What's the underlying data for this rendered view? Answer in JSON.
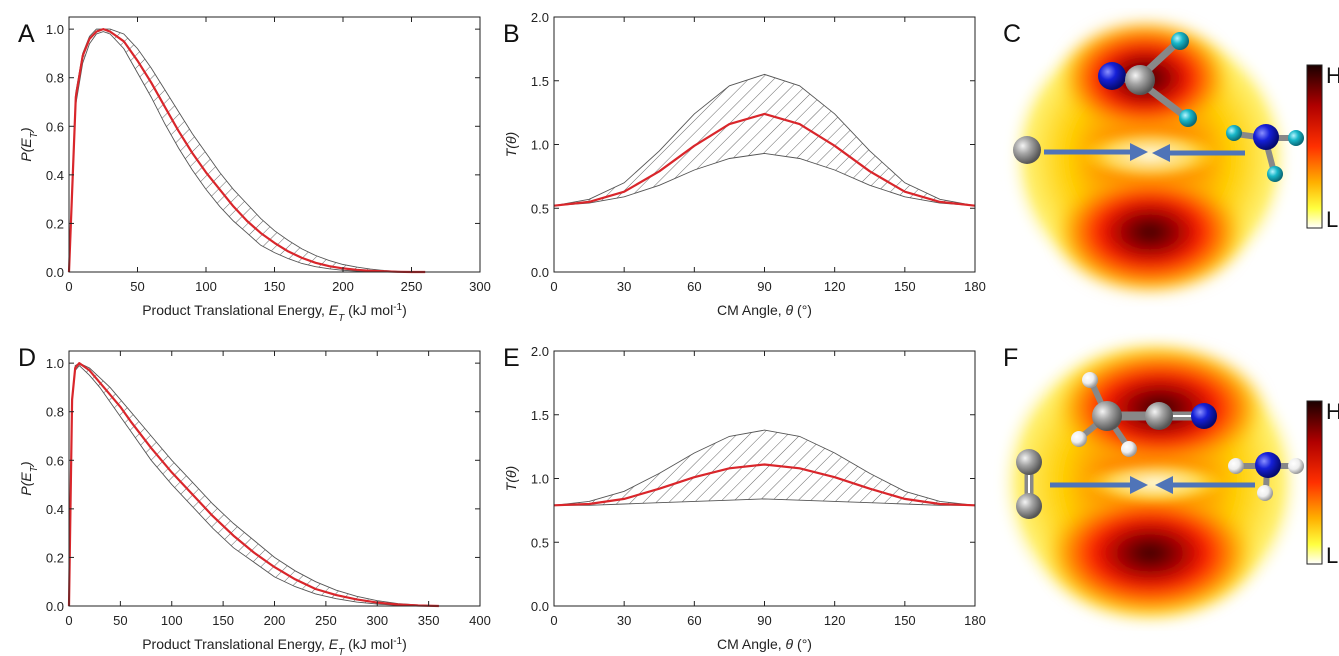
{
  "colors": {
    "fit_curve": "#d9262b",
    "error_band": "#555555",
    "axis": "#222222",
    "bond_arrow": "#4f74b8",
    "nitrogen": "#1520d8",
    "carbon": "#9a9a9a",
    "hydrogen_cyan": "#19b7c9",
    "hydrogen_white": "#f0f0f0"
  },
  "panels": {
    "a": {
      "letter": "A"
    },
    "b": {
      "letter": "B"
    },
    "c": {
      "letter": "C",
      "colorbar_high": "H",
      "colorbar_low": "L",
      "molecule_top": "H2C=C=N (cyan H)",
      "reactant_left": "C atom",
      "reactant_right": "NH3 (cyan H)"
    },
    "d": {
      "letter": "D"
    },
    "e": {
      "letter": "E"
    },
    "f": {
      "letter": "F",
      "colorbar_high": "H",
      "colorbar_low": "L",
      "molecule_top": "H2C-C≡N (white H)",
      "reactant_left": "C2",
      "reactant_right": "NH3 (white H)"
    }
  },
  "chart_data": [
    {
      "id": "A",
      "type": "line",
      "xlabel": "Product Translational Energy, ",
      "xlabel_symbol": "E",
      "xlabel_sub": "T",
      "xlabel_units": " (kJ mol",
      "xlabel_sup": "-1",
      "xlabel_close": ")",
      "ylabel": "P(E",
      "ylabel_sub": "T",
      "ylabel_close": ")",
      "xlim": [
        0,
        300
      ],
      "ylim": [
        0,
        1.05
      ],
      "xticks": [
        0,
        50,
        100,
        150,
        200,
        250,
        300
      ],
      "yticks": [
        0.0,
        0.2,
        0.4,
        0.6,
        0.8,
        1.0
      ],
      "tick_labels_x": [
        "0",
        "50",
        "100",
        "150",
        "200",
        "250",
        "300"
      ],
      "tick_labels_y": [
        "0.0",
        "0.2",
        "0.4",
        "0.6",
        "0.8",
        "1.0"
      ],
      "series": [
        {
          "role": "best_fit",
          "x": [
            0,
            5,
            10,
            15,
            20,
            25,
            30,
            40,
            50,
            60,
            70,
            80,
            90,
            100,
            110,
            120,
            130,
            140,
            150,
            160,
            170,
            180,
            190,
            200,
            210,
            220,
            230,
            240,
            250,
            260
          ],
          "y": [
            0.0,
            0.72,
            0.89,
            0.96,
            0.99,
            1.0,
            0.99,
            0.95,
            0.87,
            0.78,
            0.68,
            0.58,
            0.49,
            0.41,
            0.34,
            0.27,
            0.21,
            0.16,
            0.12,
            0.085,
            0.058,
            0.038,
            0.024,
            0.015,
            0.009,
            0.005,
            0.003,
            0.001,
            0.0,
            0.0
          ]
        },
        {
          "role": "upper_bound",
          "x": [
            0,
            5,
            10,
            15,
            20,
            25,
            30,
            40,
            50,
            60,
            70,
            80,
            90,
            100,
            110,
            120,
            130,
            140,
            150,
            160,
            170,
            180,
            190,
            200,
            210,
            220,
            230,
            240,
            250,
            260
          ],
          "y": [
            0.0,
            0.74,
            0.9,
            0.97,
            1.0,
            1.0,
            1.0,
            0.98,
            0.92,
            0.84,
            0.75,
            0.66,
            0.57,
            0.49,
            0.41,
            0.34,
            0.28,
            0.22,
            0.17,
            0.13,
            0.095,
            0.068,
            0.047,
            0.031,
            0.02,
            0.012,
            0.006,
            0.003,
            0.001,
            0.0
          ]
        },
        {
          "role": "lower_bound",
          "x": [
            0,
            5,
            10,
            15,
            20,
            25,
            30,
            40,
            50,
            60,
            70,
            80,
            90,
            100,
            110,
            120,
            130,
            140,
            150,
            160,
            170,
            180,
            190,
            200,
            210,
            220,
            230,
            240,
            250,
            260
          ],
          "y": [
            0.0,
            0.69,
            0.86,
            0.94,
            0.98,
            0.99,
            0.98,
            0.92,
            0.82,
            0.72,
            0.61,
            0.51,
            0.42,
            0.34,
            0.27,
            0.21,
            0.16,
            0.11,
            0.08,
            0.055,
            0.035,
            0.022,
            0.013,
            0.007,
            0.004,
            0.002,
            0.001,
            0.0,
            0.0,
            0.0
          ]
        }
      ]
    },
    {
      "id": "B",
      "type": "line",
      "xlabel": "CM Angle, ",
      "xlabel_symbol": "θ",
      "xlabel_units": " (°)",
      "ylabel": "T(θ)",
      "xlim": [
        0,
        180
      ],
      "ylim": [
        0,
        2.0
      ],
      "xticks": [
        0,
        30,
        60,
        90,
        120,
        150,
        180
      ],
      "yticks": [
        0.0,
        0.5,
        1.0,
        1.5,
        2.0
      ],
      "tick_labels_x": [
        "0",
        "30",
        "60",
        "90",
        "120",
        "150",
        "180"
      ],
      "tick_labels_y": [
        "0.0",
        "0.5",
        "1.0",
        "1.5",
        "2.0"
      ],
      "series": [
        {
          "role": "best_fit",
          "x": [
            0,
            15,
            30,
            45,
            60,
            75,
            90,
            105,
            120,
            135,
            150,
            165,
            180
          ],
          "y": [
            0.52,
            0.55,
            0.63,
            0.79,
            0.99,
            1.16,
            1.24,
            1.16,
            0.99,
            0.79,
            0.63,
            0.55,
            0.52
          ]
        },
        {
          "role": "upper_bound",
          "x": [
            0,
            15,
            30,
            45,
            60,
            75,
            90,
            105,
            120,
            135,
            150,
            165,
            180
          ],
          "y": [
            0.52,
            0.57,
            0.7,
            0.95,
            1.24,
            1.46,
            1.55,
            1.46,
            1.24,
            0.95,
            0.7,
            0.57,
            0.52
          ]
        },
        {
          "role": "lower_bound",
          "x": [
            0,
            15,
            30,
            45,
            60,
            75,
            90,
            105,
            120,
            135,
            150,
            165,
            180
          ],
          "y": [
            0.52,
            0.54,
            0.59,
            0.68,
            0.8,
            0.89,
            0.93,
            0.89,
            0.8,
            0.68,
            0.59,
            0.54,
            0.52
          ]
        }
      ]
    },
    {
      "id": "D",
      "type": "line",
      "xlabel": "Product Translational Energy, ",
      "xlabel_symbol": "E",
      "xlabel_sub": "T",
      "xlabel_units": " (kJ mol",
      "xlabel_sup": "-1",
      "xlabel_close": ")",
      "ylabel": "P(E",
      "ylabel_sub": "T",
      "ylabel_close": ")",
      "xlim": [
        0,
        400
      ],
      "ylim": [
        0,
        1.05
      ],
      "xticks": [
        0,
        50,
        100,
        150,
        200,
        250,
        300,
        350,
        400
      ],
      "yticks": [
        0.0,
        0.2,
        0.4,
        0.6,
        0.8,
        1.0
      ],
      "tick_labels_x": [
        "0",
        "50",
        "100",
        "150",
        "200",
        "250",
        "300",
        "350",
        "400"
      ],
      "tick_labels_y": [
        "0.0",
        "0.2",
        "0.4",
        "0.6",
        "0.8",
        "1.0"
      ],
      "series": [
        {
          "role": "best_fit",
          "x": [
            0,
            3,
            6,
            10,
            20,
            30,
            40,
            50,
            60,
            80,
            100,
            120,
            140,
            160,
            180,
            200,
            220,
            240,
            260,
            280,
            300,
            320,
            340,
            360
          ],
          "y": [
            0.0,
            0.85,
            0.98,
            1.0,
            0.97,
            0.92,
            0.87,
            0.82,
            0.76,
            0.65,
            0.55,
            0.46,
            0.37,
            0.29,
            0.22,
            0.16,
            0.11,
            0.07,
            0.045,
            0.027,
            0.014,
            0.006,
            0.002,
            0.0
          ]
        },
        {
          "role": "upper_bound",
          "x": [
            0,
            3,
            6,
            10,
            20,
            30,
            40,
            50,
            60,
            80,
            100,
            120,
            140,
            160,
            180,
            200,
            220,
            240,
            260,
            280,
            300,
            320,
            340,
            360
          ],
          "y": [
            0.0,
            0.86,
            0.99,
            1.0,
            0.98,
            0.94,
            0.9,
            0.85,
            0.8,
            0.7,
            0.6,
            0.51,
            0.42,
            0.34,
            0.27,
            0.2,
            0.145,
            0.1,
            0.065,
            0.04,
            0.022,
            0.01,
            0.004,
            0.0
          ]
        },
        {
          "role": "lower_bound",
          "x": [
            0,
            3,
            6,
            10,
            20,
            30,
            40,
            50,
            60,
            80,
            100,
            120,
            140,
            160,
            180,
            200,
            220,
            240,
            260,
            280,
            300,
            320,
            340,
            360
          ],
          "y": [
            0.0,
            0.84,
            0.97,
            0.99,
            0.95,
            0.9,
            0.84,
            0.78,
            0.72,
            0.6,
            0.5,
            0.41,
            0.32,
            0.24,
            0.18,
            0.12,
            0.08,
            0.05,
            0.03,
            0.016,
            0.008,
            0.003,
            0.001,
            0.0
          ]
        }
      ]
    },
    {
      "id": "E",
      "type": "line",
      "xlabel": "CM Angle, ",
      "xlabel_symbol": "θ",
      "xlabel_units": " (°)",
      "ylabel": "T(θ)",
      "xlim": [
        0,
        180
      ],
      "ylim": [
        0,
        2.0
      ],
      "xticks": [
        0,
        30,
        60,
        90,
        120,
        150,
        180
      ],
      "yticks": [
        0.0,
        0.5,
        1.0,
        1.5,
        2.0
      ],
      "tick_labels_x": [
        "0",
        "30",
        "60",
        "90",
        "120",
        "150",
        "180"
      ],
      "tick_labels_y": [
        "0.0",
        "0.5",
        "1.0",
        "1.5",
        "2.0"
      ],
      "series": [
        {
          "role": "best_fit",
          "x": [
            0,
            15,
            30,
            45,
            60,
            75,
            90,
            105,
            120,
            135,
            150,
            165,
            180
          ],
          "y": [
            0.79,
            0.8,
            0.84,
            0.92,
            1.01,
            1.08,
            1.11,
            1.08,
            1.01,
            0.92,
            0.84,
            0.8,
            0.79
          ]
        },
        {
          "role": "upper_bound",
          "x": [
            0,
            15,
            30,
            45,
            60,
            75,
            90,
            105,
            120,
            135,
            150,
            165,
            180
          ],
          "y": [
            0.79,
            0.82,
            0.9,
            1.04,
            1.2,
            1.33,
            1.38,
            1.33,
            1.2,
            1.04,
            0.9,
            0.82,
            0.79
          ]
        },
        {
          "role": "lower_bound",
          "x": [
            0,
            15,
            30,
            45,
            60,
            75,
            90,
            105,
            120,
            135,
            150,
            165,
            180
          ],
          "y": [
            0.79,
            0.79,
            0.8,
            0.81,
            0.82,
            0.83,
            0.84,
            0.83,
            0.82,
            0.81,
            0.8,
            0.79,
            0.79
          ]
        }
      ]
    }
  ]
}
